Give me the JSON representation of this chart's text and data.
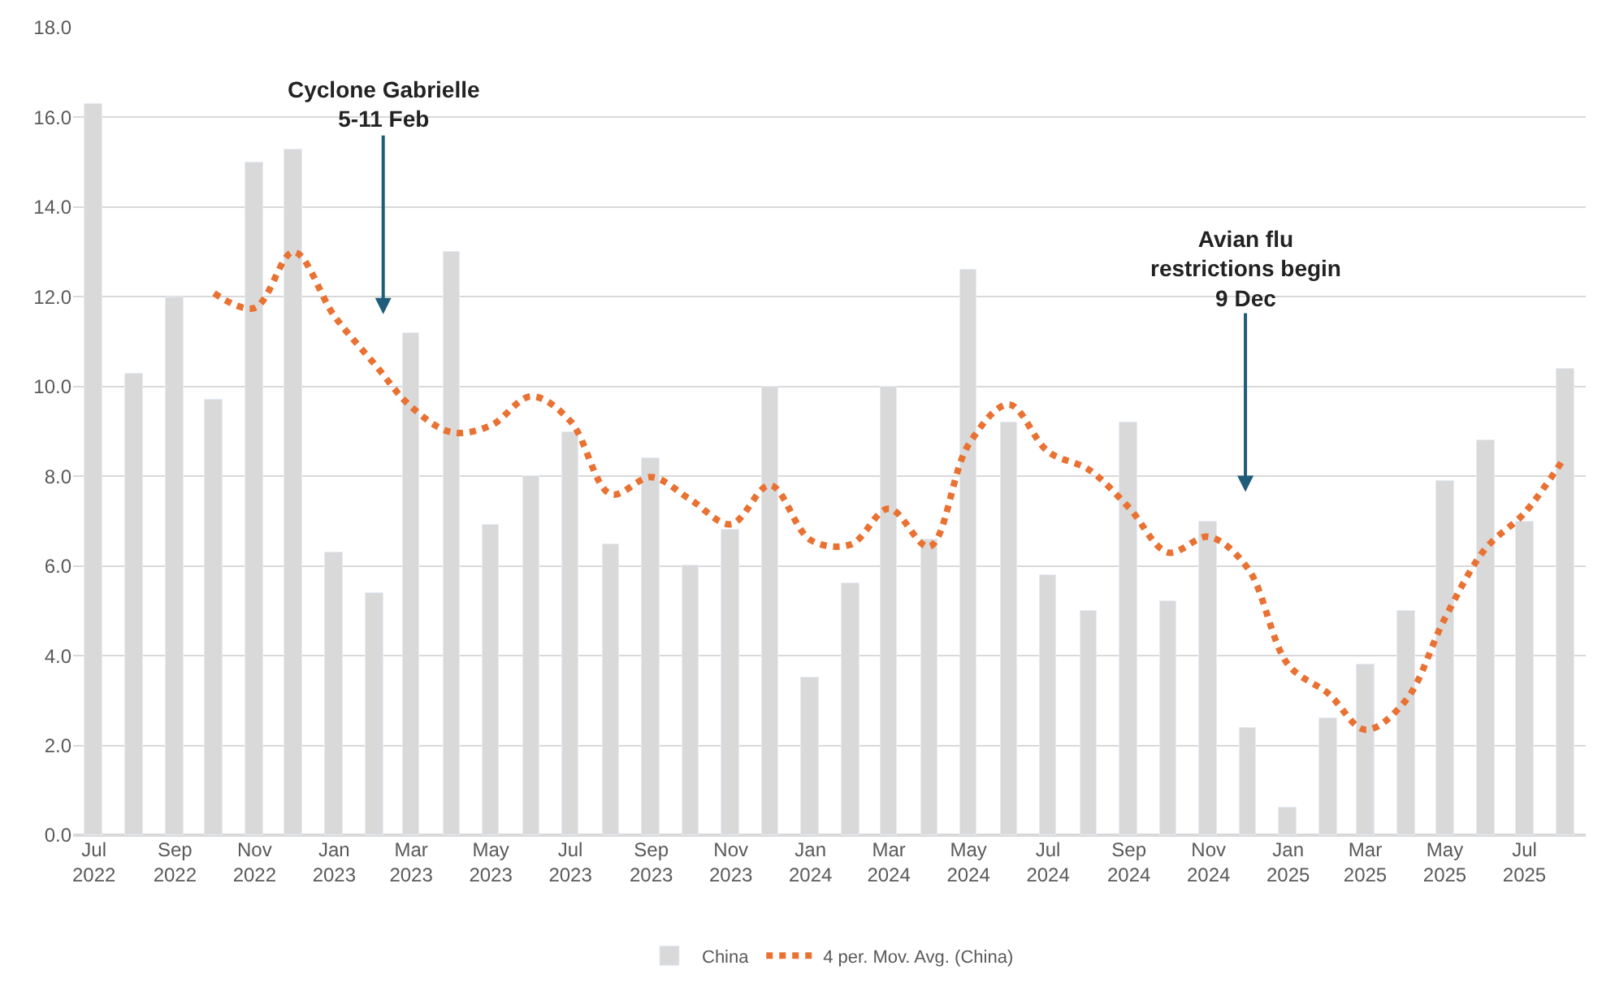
{
  "chart_data": {
    "type": "bar",
    "x": [
      "2022-07",
      "2022-08",
      "2022-09",
      "2022-10",
      "2022-11",
      "2022-12",
      "2023-01",
      "2023-02",
      "2023-03",
      "2023-04",
      "2023-05",
      "2023-06",
      "2023-07",
      "2023-08",
      "2023-09",
      "2023-10",
      "2023-11",
      "2023-12",
      "2024-01",
      "2024-02",
      "2024-03",
      "2024-04",
      "2024-05",
      "2024-06",
      "2024-07",
      "2024-08",
      "2024-09",
      "2024-10",
      "2024-11",
      "2024-12",
      "2025-01",
      "2025-02",
      "2025-03",
      "2025-04",
      "2025-05",
      "2025-06",
      "2025-07",
      "2025-08"
    ],
    "series": [
      {
        "name": "China",
        "color": "#d9d9d9",
        "values": [
          16.3,
          10.3,
          12.0,
          9.7,
          15.0,
          15.3,
          6.3,
          5.4,
          11.2,
          13.0,
          6.9,
          8.0,
          9.0,
          6.5,
          8.4,
          6.0,
          6.8,
          10.0,
          3.5,
          5.6,
          10.0,
          6.6,
          12.6,
          9.2,
          5.8,
          5.0,
          9.2,
          5.2,
          7.0,
          2.4,
          0.6,
          2.6,
          3.8,
          5.0,
          7.9,
          8.8,
          7.0,
          10.4
        ]
      },
      {
        "name": "4 per. Mov. Avg. (China)",
        "type": "line",
        "color": "#e97132",
        "line_style": "dotted",
        "marker": "none",
        "values": [
          null,
          null,
          null,
          12.08,
          11.75,
          13.0,
          11.58,
          10.5,
          9.55,
          8.98,
          9.13,
          9.78,
          9.23,
          7.6,
          7.98,
          7.48,
          6.93,
          7.8,
          6.58,
          6.48,
          7.28,
          6.43,
          8.7,
          9.6,
          8.55,
          8.15,
          7.3,
          6.3,
          6.65,
          5.95,
          3.8,
          3.15,
          2.35,
          3.0,
          4.83,
          6.38,
          7.18,
          8.43
        ]
      }
    ],
    "xlim": [
      "2022-06-15",
      "2025-08-17"
    ],
    "xticks": [
      {
        "value": "2022-07",
        "label": "Jul 2022"
      },
      {
        "value": "2022-09",
        "label": "Sep 2022"
      },
      {
        "value": "2022-11",
        "label": "Nov 2022"
      },
      {
        "value": "2023-01",
        "label": "Jan 2023"
      },
      {
        "value": "2023-03",
        "label": "Mar 2023"
      },
      {
        "value": "2023-05",
        "label": "May 2023"
      },
      {
        "value": "2023-07",
        "label": "Jul 2023"
      },
      {
        "value": "2023-09",
        "label": "Sep 2023"
      },
      {
        "value": "2023-11",
        "label": "Nov 2023"
      },
      {
        "value": "2024-01",
        "label": "Jan 2024"
      },
      {
        "value": "2024-03",
        "label": "Mar 2024"
      },
      {
        "value": "2024-05",
        "label": "May 2024"
      },
      {
        "value": "2024-07",
        "label": "Jul 2024"
      },
      {
        "value": "2024-09",
        "label": "Sep 2024"
      },
      {
        "value": "2024-11",
        "label": "Nov 2024"
      },
      {
        "value": "2025-01",
        "label": "Jan 2025"
      },
      {
        "value": "2025-03",
        "label": "Mar 2025"
      },
      {
        "value": "2025-05",
        "label": "May 2025"
      },
      {
        "value": "2025-07",
        "label": "Jul 2025"
      }
    ],
    "ylim": [
      0,
      18
    ],
    "yticks": [
      {
        "value": 0,
        "label": "0.0"
      },
      {
        "value": 2,
        "label": "2.0"
      },
      {
        "value": 4,
        "label": "4.0"
      },
      {
        "value": 6,
        "label": "6.0"
      },
      {
        "value": 8,
        "label": "8.0"
      },
      {
        "value": 10,
        "label": "10.0"
      },
      {
        "value": 12,
        "label": "12.0"
      },
      {
        "value": 14,
        "label": "14.0"
      },
      {
        "value": 16,
        "label": "16.0"
      },
      {
        "value": 18,
        "label": "18.0"
      }
    ],
    "grid": "y",
    "legend": "bottom",
    "annotations": [
      "Cyclone Gabrielle\n5-11 Feb",
      "Avian flu\nrestrictions begin\n9 Dec"
    ]
  }
}
